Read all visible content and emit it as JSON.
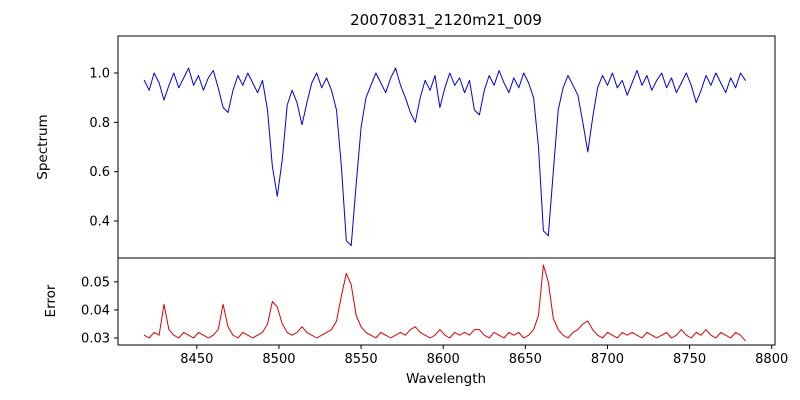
{
  "figure": {
    "title": "20070831_2120m21_009",
    "xlabel": "Wavelength",
    "background": "#ffffff"
  },
  "chart_data": [
    {
      "type": "line",
      "name": "spectrum",
      "title": "20070831_2120m21_009",
      "ylabel": "Spectrum",
      "color": "#0000dd",
      "legend": "none",
      "grid": false,
      "xlim": [
        8402,
        8802
      ],
      "ylim": [
        0.25,
        1.15
      ],
      "yticks": [
        0.4,
        0.6,
        0.8,
        1.0
      ],
      "ytick_labels": [
        "0.4",
        "0.6",
        "0.8",
        "1.0"
      ],
      "x_start": 8418,
      "x_step": 3,
      "values": [
        0.97,
        0.93,
        1.0,
        0.96,
        0.89,
        0.95,
        1.0,
        0.94,
        0.98,
        1.02,
        0.95,
        0.99,
        0.93,
        0.98,
        1.01,
        0.94,
        0.86,
        0.84,
        0.93,
        0.99,
        0.95,
        1.0,
        0.96,
        0.92,
        0.97,
        0.85,
        0.62,
        0.5,
        0.65,
        0.87,
        0.93,
        0.88,
        0.79,
        0.88,
        0.96,
        1.0,
        0.94,
        0.98,
        0.93,
        0.85,
        0.62,
        0.32,
        0.3,
        0.55,
        0.78,
        0.9,
        0.95,
        1.0,
        0.96,
        0.92,
        0.98,
        1.02,
        0.95,
        0.9,
        0.84,
        0.8,
        0.9,
        0.97,
        0.93,
        0.99,
        0.86,
        0.94,
        1.0,
        0.95,
        0.98,
        0.92,
        0.97,
        0.85,
        0.83,
        0.93,
        0.99,
        0.95,
        1.01,
        0.96,
        0.92,
        0.98,
        0.94,
        1.0,
        0.96,
        0.9,
        0.7,
        0.36,
        0.34,
        0.6,
        0.85,
        0.94,
        0.99,
        0.95,
        0.91,
        0.8,
        0.68,
        0.82,
        0.94,
        0.99,
        0.95,
        1.0,
        0.94,
        0.97,
        0.91,
        0.96,
        1.01,
        0.95,
        0.99,
        0.93,
        0.97,
        1.0,
        0.94,
        0.98,
        0.92,
        0.96,
        1.0,
        0.95,
        0.88,
        0.93,
        0.99,
        0.95,
        1.0,
        0.96,
        0.92,
        0.98,
        0.94,
        1.0,
        0.97
      ],
      "absorption_features": [
        {
          "center": 8430,
          "depth": 0.89
        },
        {
          "center": 8468,
          "depth": 0.84
        },
        {
          "center": 8498,
          "depth": 0.5
        },
        {
          "center": 8542,
          "depth": 0.3
        },
        {
          "center": 8662,
          "depth": 0.34
        },
        {
          "center": 8688,
          "depth": 0.68
        }
      ]
    },
    {
      "type": "line",
      "name": "error",
      "ylabel": "Error",
      "xlabel": "Wavelength",
      "color": "#dd0000",
      "legend": "none",
      "grid": false,
      "xlim": [
        8402,
        8802
      ],
      "ylim": [
        0.0275,
        0.0585
      ],
      "yticks": [
        0.03,
        0.04,
        0.05
      ],
      "ytick_labels": [
        "0.03",
        "0.04",
        "0.05"
      ],
      "xticks": [
        8450,
        8500,
        8550,
        8600,
        8650,
        8700,
        8750,
        8800
      ],
      "xtick_labels": [
        "8450",
        "8500",
        "8550",
        "8600",
        "8650",
        "8700",
        "8750",
        "8800"
      ],
      "x_start": 8418,
      "x_step": 3,
      "values": [
        0.031,
        0.03,
        0.032,
        0.031,
        0.042,
        0.033,
        0.031,
        0.03,
        0.032,
        0.031,
        0.03,
        0.032,
        0.031,
        0.03,
        0.031,
        0.033,
        0.042,
        0.034,
        0.031,
        0.03,
        0.032,
        0.031,
        0.03,
        0.031,
        0.032,
        0.035,
        0.043,
        0.041,
        0.035,
        0.032,
        0.031,
        0.032,
        0.034,
        0.032,
        0.031,
        0.03,
        0.031,
        0.032,
        0.033,
        0.036,
        0.045,
        0.053,
        0.049,
        0.038,
        0.034,
        0.032,
        0.031,
        0.03,
        0.032,
        0.031,
        0.03,
        0.031,
        0.032,
        0.031,
        0.033,
        0.034,
        0.032,
        0.031,
        0.03,
        0.031,
        0.033,
        0.031,
        0.03,
        0.032,
        0.031,
        0.032,
        0.031,
        0.033,
        0.033,
        0.031,
        0.03,
        0.032,
        0.031,
        0.03,
        0.032,
        0.031,
        0.032,
        0.03,
        0.031,
        0.033,
        0.038,
        0.056,
        0.05,
        0.037,
        0.033,
        0.031,
        0.03,
        0.032,
        0.033,
        0.035,
        0.036,
        0.033,
        0.031,
        0.03,
        0.032,
        0.031,
        0.03,
        0.032,
        0.031,
        0.032,
        0.031,
        0.03,
        0.032,
        0.031,
        0.03,
        0.031,
        0.032,
        0.03,
        0.031,
        0.033,
        0.031,
        0.03,
        0.032,
        0.031,
        0.033,
        0.031,
        0.03,
        0.032,
        0.031,
        0.03,
        0.032,
        0.031,
        0.029
      ]
    }
  ]
}
